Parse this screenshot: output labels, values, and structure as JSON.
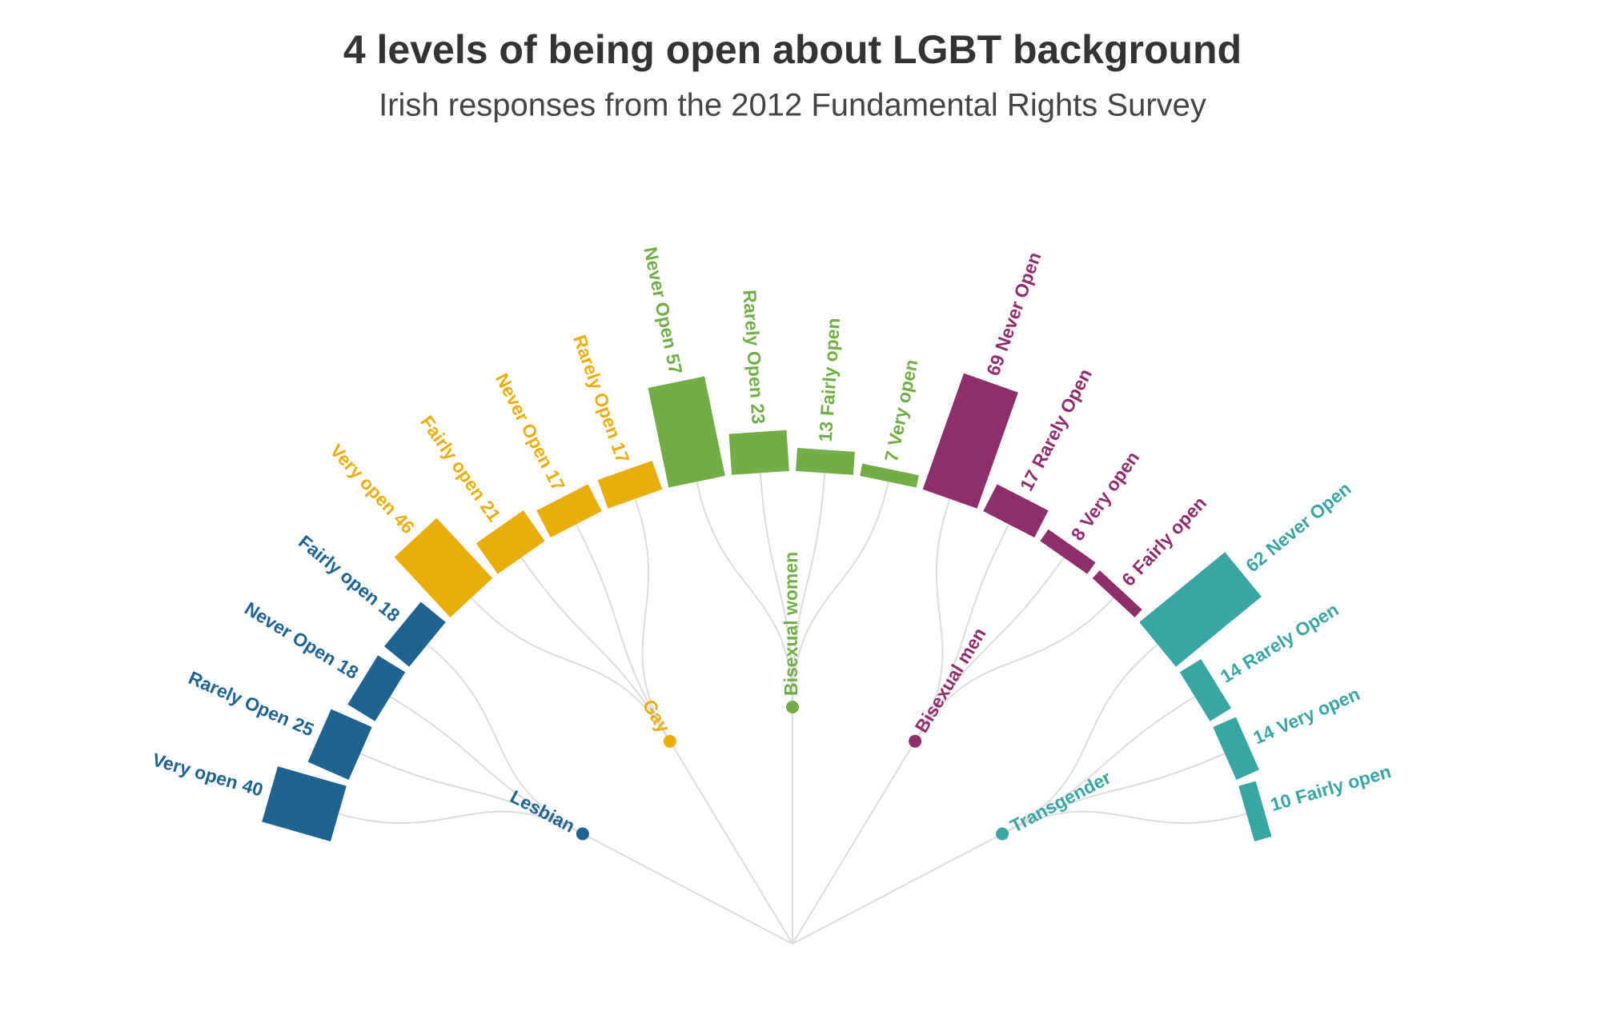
{
  "chart_data": {
    "type": "radial-tree",
    "title": "4 levels of being open about LGBT background",
    "subtitle": "Irish responses from the 2012 Fundamental Rights Survey",
    "groups": [
      {
        "name": "Lesbian",
        "color": "#1f6391",
        "leaves": [
          {
            "name": "Very open",
            "value": 40
          },
          {
            "name": "Rarely Open",
            "value": 25
          },
          {
            "name": "Never Open",
            "value": 18
          },
          {
            "name": "Fairly open",
            "value": 18
          }
        ]
      },
      {
        "name": "Gay",
        "color": "#e9ad0c",
        "leaves": [
          {
            "name": "Very open",
            "value": 46
          },
          {
            "name": "Fairly open",
            "value": 21
          },
          {
            "name": "Never Open",
            "value": 17
          },
          {
            "name": "Rarely Open",
            "value": 17
          }
        ]
      },
      {
        "name": "Bisexual women",
        "color": "#72ad47",
        "leaves": [
          {
            "name": "Never Open",
            "value": 57
          },
          {
            "name": "Rarely Open",
            "value": 23
          },
          {
            "name": "Fairly open",
            "value": 13
          },
          {
            "name": "Very open",
            "value": 7
          }
        ]
      },
      {
        "name": "Bisexual men",
        "color": "#8e2f6c",
        "leaves": [
          {
            "name": "Never Open",
            "value": 69
          },
          {
            "name": "Rarely Open",
            "value": 17
          },
          {
            "name": "Very open",
            "value": 8
          },
          {
            "name": "Fairly open",
            "value": 6
          }
        ]
      },
      {
        "name": "Transgender",
        "color": "#3aa6a3",
        "leaves": [
          {
            "name": "Never Open",
            "value": 62
          },
          {
            "name": "Rarely Open",
            "value": 14
          },
          {
            "name": "Very open",
            "value": 14
          },
          {
            "name": "Fairly open",
            "value": 10
          }
        ]
      }
    ]
  }
}
